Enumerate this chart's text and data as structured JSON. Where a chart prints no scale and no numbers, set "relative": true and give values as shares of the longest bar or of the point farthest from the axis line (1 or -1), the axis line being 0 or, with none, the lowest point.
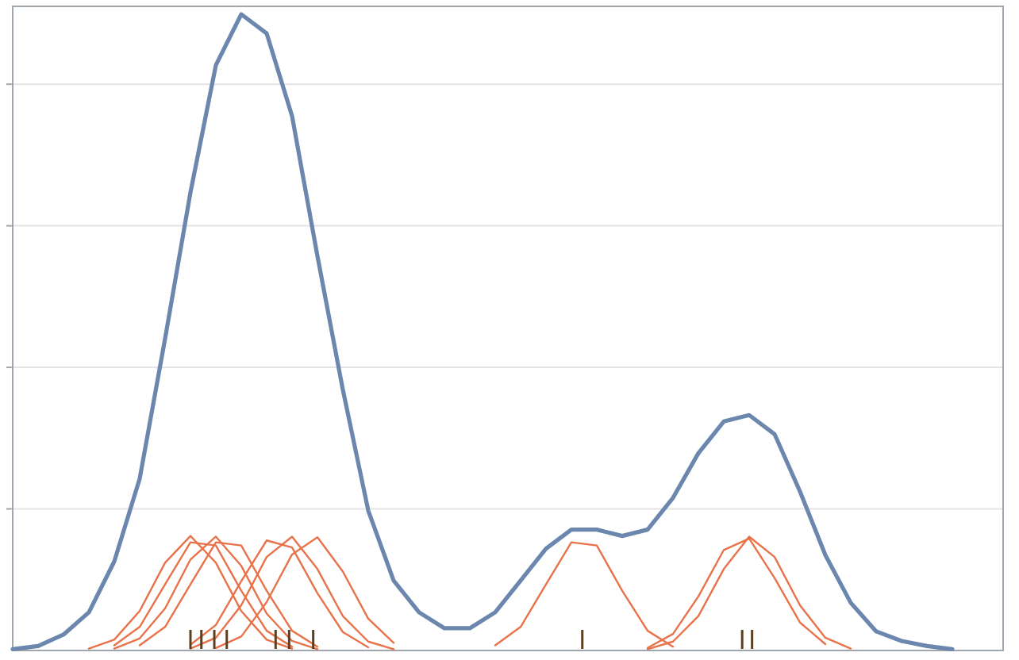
{
  "chart_data": {
    "type": "line",
    "relative": true,
    "grid": "y",
    "categories": [
      null,
      null,
      null,
      null,
      null,
      null,
      null,
      null,
      null,
      null,
      null,
      null,
      null,
      null,
      null,
      null,
      null,
      null,
      null,
      null,
      null,
      null,
      null,
      null,
      null,
      null,
      null,
      null,
      null,
      null,
      null,
      null,
      null,
      null,
      null,
      null,
      null,
      null,
      null,
      null
    ],
    "series": [
      {
        "color": "#e8734a",
        "values": [
          null,
          null,
          null,
          0.003,
          0.017,
          0.062,
          0.138,
          0.18,
          0.138,
          0.062,
          0.017,
          0.003,
          null,
          null,
          null,
          null,
          null,
          null,
          null,
          null,
          null,
          null,
          null,
          null,
          null,
          null,
          null,
          null,
          null,
          null,
          null,
          null,
          null,
          null,
          null,
          null,
          null,
          null,
          null,
          null
        ]
      },
      {
        "color": "#e8734a",
        "values": [
          null,
          null,
          null,
          null,
          0.008,
          0.037,
          0.104,
          0.17,
          0.165,
          0.094,
          0.031,
          0.006,
          null,
          null,
          null,
          null,
          null,
          null,
          null,
          null,
          null,
          null,
          null,
          null,
          null,
          null,
          null,
          null,
          null,
          null,
          null,
          null,
          null,
          null,
          null,
          null,
          null,
          null,
          null,
          null
        ]
      },
      {
        "color": "#e8734a",
        "values": [
          null,
          null,
          null,
          null,
          0.003,
          0.019,
          0.066,
          0.143,
          0.179,
          0.133,
          0.058,
          0.015,
          0.002,
          null,
          null,
          null,
          null,
          null,
          null,
          null,
          null,
          null,
          null,
          null,
          null,
          null,
          null,
          null,
          null,
          null,
          null,
          null,
          null,
          null,
          null,
          null,
          null,
          null,
          null,
          null
        ]
      },
      {
        "color": "#e8734a",
        "values": [
          null,
          null,
          null,
          null,
          null,
          0.008,
          0.037,
          0.104,
          0.17,
          0.165,
          0.094,
          0.031,
          0.006,
          null,
          null,
          null,
          null,
          null,
          null,
          null,
          null,
          null,
          null,
          null,
          null,
          null,
          null,
          null,
          null,
          null,
          null,
          null,
          null,
          null,
          null,
          null,
          null,
          null,
          null,
          null
        ]
      },
      {
        "color": "#e8734a",
        "values": [
          null,
          null,
          null,
          null,
          null,
          null,
          null,
          0.009,
          0.04,
          0.109,
          0.173,
          0.162,
          0.09,
          0.029,
          0.005,
          null,
          null,
          null,
          null,
          null,
          null,
          null,
          null,
          null,
          null,
          null,
          null,
          null,
          null,
          null,
          null,
          null,
          null,
          null,
          null,
          null,
          null,
          null,
          null,
          null
        ]
      },
      {
        "color": "#e8734a",
        "values": [
          null,
          null,
          null,
          null,
          null,
          null,
          null,
          0.003,
          0.02,
          0.071,
          0.147,
          0.179,
          0.128,
          0.054,
          0.014,
          0.002,
          null,
          null,
          null,
          null,
          null,
          null,
          null,
          null,
          null,
          null,
          null,
          null,
          null,
          null,
          null,
          null,
          null,
          null,
          null,
          null,
          null,
          null,
          null,
          null
        ]
      },
      {
        "color": "#e8734a",
        "values": [
          null,
          null,
          null,
          null,
          null,
          null,
          null,
          null,
          0.004,
          0.022,
          0.076,
          0.151,
          0.178,
          0.124,
          0.05,
          0.012,
          null,
          null,
          null,
          null,
          null,
          null,
          null,
          null,
          null,
          null,
          null,
          null,
          null,
          null,
          null,
          null,
          null,
          null,
          null,
          null,
          null,
          null,
          null,
          null
        ]
      },
      {
        "color": "#e8734a",
        "values": [
          null,
          null,
          null,
          null,
          null,
          null,
          null,
          null,
          null,
          null,
          null,
          null,
          null,
          null,
          null,
          null,
          null,
          null,
          null,
          0.008,
          0.037,
          0.104,
          0.17,
          0.165,
          0.094,
          0.031,
          0.006,
          null,
          null,
          null,
          null,
          null,
          null,
          null,
          null,
          null,
          null,
          null,
          null,
          null
        ]
      },
      {
        "color": "#e8734a",
        "values": [
          null,
          null,
          null,
          null,
          null,
          null,
          null,
          null,
          null,
          null,
          null,
          null,
          null,
          null,
          null,
          null,
          null,
          null,
          null,
          null,
          null,
          null,
          null,
          null,
          null,
          0.004,
          0.026,
          0.085,
          0.158,
          0.176,
          0.114,
          0.044,
          0.01,
          null,
          null,
          null,
          null,
          null,
          null,
          null
        ]
      },
      {
        "color": "#e8734a",
        "values": [
          null,
          null,
          null,
          null,
          null,
          null,
          null,
          null,
          null,
          null,
          null,
          null,
          null,
          null,
          null,
          null,
          null,
          null,
          null,
          null,
          null,
          null,
          null,
          null,
          null,
          0.002,
          0.014,
          0.054,
          0.128,
          0.179,
          0.147,
          0.071,
          0.02,
          0.003,
          null,
          null,
          null,
          null,
          null,
          null
        ]
      },
      {
        "color": "#6c87ad",
        "values": [
          0.002,
          0.007,
          0.025,
          0.06,
          0.14,
          0.27,
          0.49,
          0.72,
          0.92,
          1.0,
          0.97,
          0.84,
          0.62,
          0.41,
          0.22,
          0.11,
          0.06,
          0.035,
          0.035,
          0.06,
          0.11,
          0.16,
          0.19,
          0.19,
          0.18,
          0.19,
          0.24,
          0.31,
          0.36,
          0.37,
          0.34,
          0.25,
          0.15,
          0.075,
          0.03,
          0.015,
          0.007,
          0.002,
          null,
          null
        ]
      }
    ]
  }
}
